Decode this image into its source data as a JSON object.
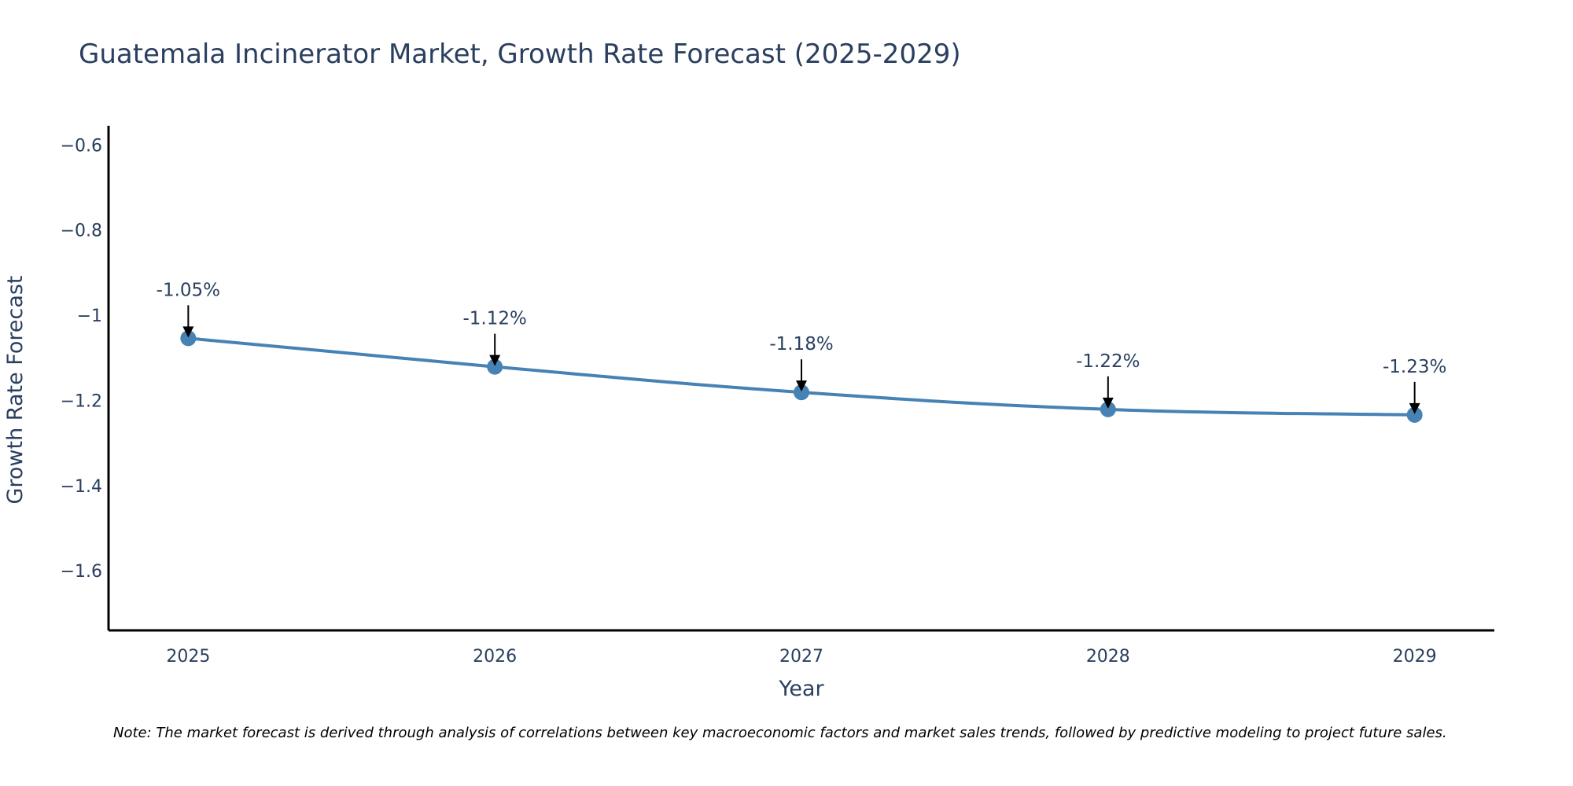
{
  "chart_data": {
    "type": "line",
    "title": "Guatemala Incinerator Market, Growth Rate Forecast (2025-2029)",
    "xlabel": "Year",
    "ylabel": "Growth Rate Forecast",
    "categories": [
      "2025",
      "2026",
      "2027",
      "2028",
      "2029"
    ],
    "series": [
      {
        "name": "Growth Rate Forecast",
        "values": [
          -1.054,
          -1.121,
          -1.181,
          -1.221,
          -1.234
        ],
        "color": "#4682b4"
      }
    ],
    "annotations": [
      "-1.05%",
      "-1.12%",
      "-1.18%",
      "-1.22%",
      "-1.23%"
    ],
    "y_ticks": [
      -0.6,
      -0.8,
      -1,
      -1.2,
      -1.4,
      -1.6
    ],
    "y_tick_labels": [
      "−0.6",
      "−0.8",
      "−1",
      "−1.2",
      "−1.4",
      "−1.6"
    ],
    "ylim": [
      -1.74,
      -0.555
    ],
    "xlim": [
      -0.26,
      4.26
    ],
    "grid": false,
    "legend": "none",
    "note": "Note: The market forecast is derived through analysis of correlations between key macroeconomic factors and market sales trends, followed by predictive modeling to project future sales."
  }
}
